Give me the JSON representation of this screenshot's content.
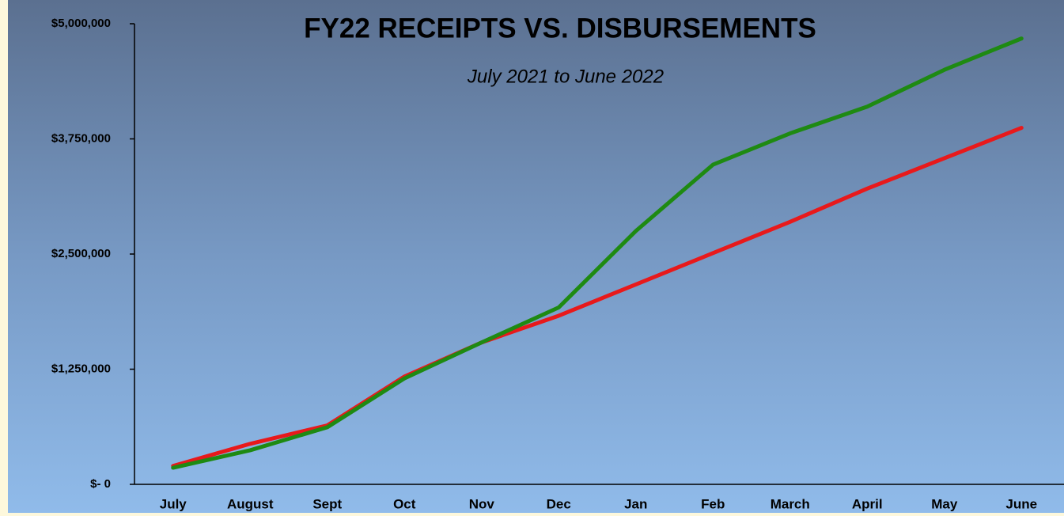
{
  "chart_data": {
    "type": "line",
    "title": "FY22 RECEIPTS VS. DISBURSEMENTS",
    "subtitle": "July 2021  to June 2022",
    "categories": [
      "July",
      "August",
      "Sept",
      "Oct",
      "Nov",
      "Dec",
      "Jan",
      "Feb",
      "March",
      "April",
      "May",
      "June"
    ],
    "series": [
      {
        "color": "#e8191b",
        "values": [
          200000,
          440000,
          640000,
          1170000,
          1540000,
          1830000,
          2170000,
          2510000,
          2850000,
          3210000,
          3540000,
          3870000
        ]
      },
      {
        "color": "#1e8a12",
        "values": [
          180000,
          370000,
          620000,
          1150000,
          1540000,
          1920000,
          2750000,
          3470000,
          3810000,
          4100000,
          4500000,
          4840000
        ]
      }
    ],
    "ylim": [
      0,
      5000000
    ],
    "yticks": [
      {
        "value": 0,
        "label": "$- 0"
      },
      {
        "value": 1250000,
        "label": "$1,250,000"
      },
      {
        "value": 2500000,
        "label": "$2,500,000"
      },
      {
        "value": 3750000,
        "label": "$3,750,000"
      },
      {
        "value": 5000000,
        "label": "$5,000,000"
      }
    ]
  }
}
